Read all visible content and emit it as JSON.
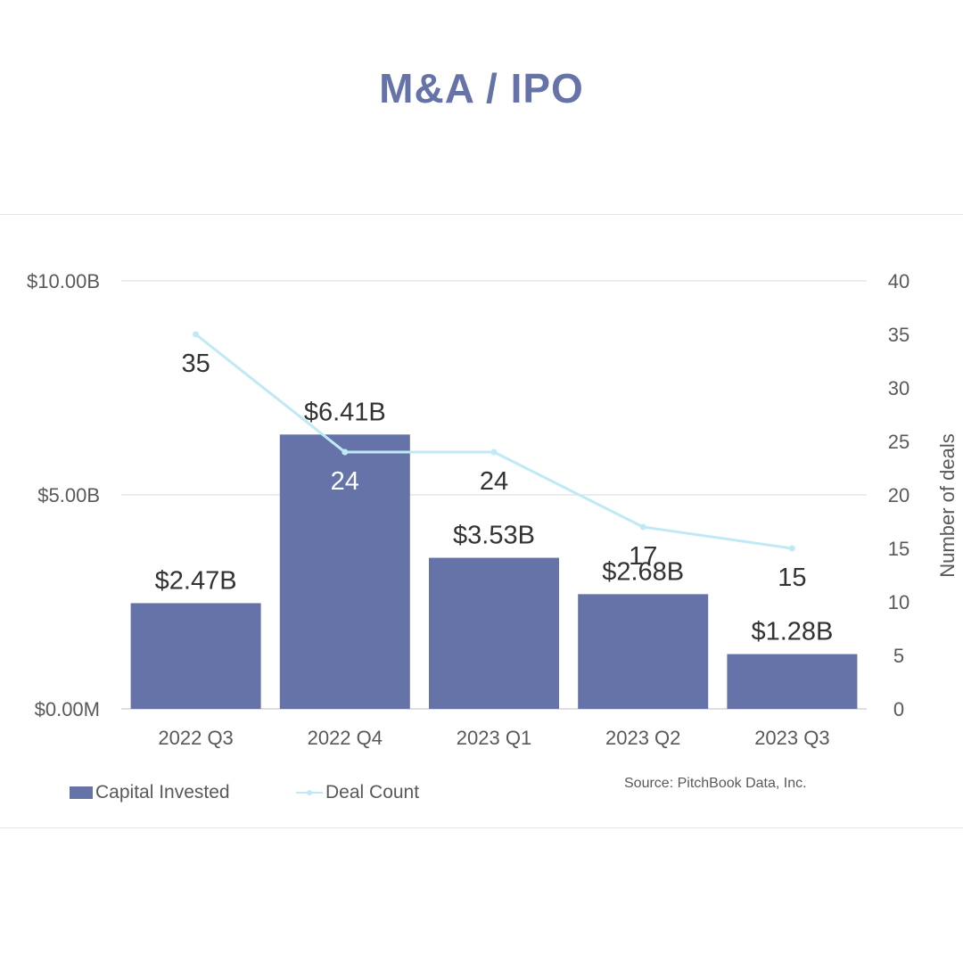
{
  "page": {
    "title": "M&A / IPO",
    "source": "Source: PitchBook Data, Inc."
  },
  "colors": {
    "bar": "#6673a8",
    "line": "#bfeaf5",
    "title": "#6673a8"
  },
  "legend": {
    "bar_label": "Capital Invested",
    "line_label": "Deal Count"
  },
  "chart_data": {
    "type": "bar",
    "categories": [
      "2022 Q3",
      "2022 Q4",
      "2023 Q1",
      "2023 Q2",
      "2023 Q3"
    ],
    "series": [
      {
        "name": "Capital Invested",
        "type": "bar",
        "axis": "left",
        "values": [
          2.47,
          6.41,
          3.53,
          2.68,
          1.28
        ],
        "labels": [
          "$2.47B",
          "$6.41B",
          "$3.53B",
          "$2.68B",
          "$1.28B"
        ]
      },
      {
        "name": "Deal Count",
        "type": "line",
        "axis": "right",
        "values": [
          35,
          24,
          24,
          17,
          15
        ],
        "labels": [
          "35",
          "24",
          "24",
          "17",
          "15"
        ]
      }
    ],
    "y_left": {
      "ylim": [
        0,
        10
      ],
      "ticks": [
        "$0.00M",
        "$5.00B",
        "$10.00B"
      ]
    },
    "y_right": {
      "label": "Number of deals",
      "ylim": [
        0,
        40
      ],
      "ticks": [
        "0",
        "5",
        "10",
        "15",
        "20",
        "25",
        "30",
        "35",
        "40"
      ]
    },
    "grid": true,
    "legend": "bottom-left"
  }
}
